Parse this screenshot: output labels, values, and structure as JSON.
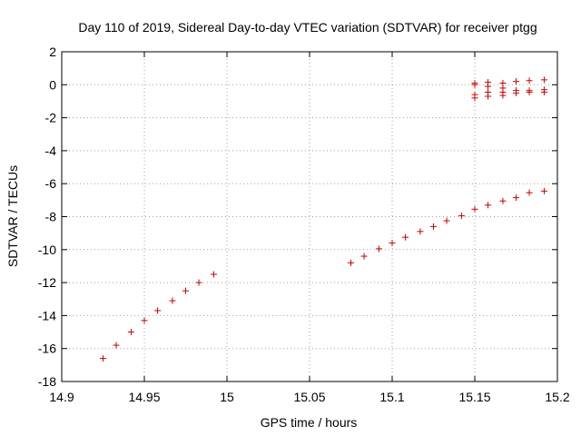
{
  "chart_data": {
    "type": "scatter",
    "title": "Day 110 of 2019, Sidereal Day-to-day VTEC variation (SDTVAR) for receiver ptgg",
    "xlabel": "GPS time / hours",
    "ylabel": "SDTVAR / TECUs",
    "xlim": [
      14.9,
      15.2
    ],
    "ylim": [
      -18,
      2
    ],
    "xticks": [
      14.9,
      14.95,
      15,
      15.05,
      15.1,
      15.15,
      15.2
    ],
    "xtick_labels": [
      "14.9",
      "14.95",
      "15",
      "15.05",
      "15.1",
      "15.15",
      "15.2"
    ],
    "yticks": [
      2,
      0,
      -2,
      -4,
      -6,
      -8,
      -10,
      -12,
      -14,
      -16,
      -18
    ],
    "ytick_labels": [
      "2",
      "0",
      "-2",
      "-4",
      "-6",
      "-8",
      "-10",
      "-12",
      "-14",
      "-16",
      "-18"
    ],
    "grid": true,
    "marker": "+",
    "color": "#cc0000",
    "series": [
      {
        "points": [
          [
            14.925,
            -16.6
          ],
          [
            14.933,
            -15.8
          ],
          [
            14.942,
            -15.0
          ],
          [
            14.95,
            -14.3
          ],
          [
            14.958,
            -13.7
          ],
          [
            14.967,
            -13.1
          ],
          [
            14.975,
            -12.5
          ],
          [
            14.983,
            -12.0
          ],
          [
            14.992,
            -11.5
          ],
          [
            15.075,
            -10.8
          ],
          [
            15.083,
            -10.4
          ],
          [
            15.092,
            -9.95
          ],
          [
            15.1,
            -9.6
          ],
          [
            15.108,
            -9.25
          ],
          [
            15.117,
            -8.9
          ],
          [
            15.125,
            -8.6
          ],
          [
            15.133,
            -8.25
          ],
          [
            15.142,
            -7.95
          ],
          [
            15.15,
            -7.55
          ],
          [
            15.158,
            -7.3
          ],
          [
            15.167,
            -7.05
          ],
          [
            15.175,
            -6.85
          ],
          [
            15.183,
            -6.55
          ],
          [
            15.192,
            -6.45
          ],
          [
            15.15,
            0.1
          ],
          [
            15.15,
            0.0
          ],
          [
            15.15,
            -0.6
          ],
          [
            15.15,
            -0.8
          ],
          [
            15.158,
            0.15
          ],
          [
            15.158,
            -0.1
          ],
          [
            15.158,
            -0.45
          ],
          [
            15.158,
            -0.7
          ],
          [
            15.167,
            0.1
          ],
          [
            15.167,
            -0.2
          ],
          [
            15.167,
            -0.45
          ],
          [
            15.167,
            -0.65
          ],
          [
            15.175,
            0.2
          ],
          [
            15.175,
            -0.35
          ],
          [
            15.175,
            -0.5
          ],
          [
            15.183,
            0.25
          ],
          [
            15.183,
            -0.35
          ],
          [
            15.183,
            -0.45
          ],
          [
            15.192,
            0.3
          ],
          [
            15.192,
            -0.3
          ],
          [
            15.192,
            -0.45
          ]
        ]
      }
    ]
  }
}
